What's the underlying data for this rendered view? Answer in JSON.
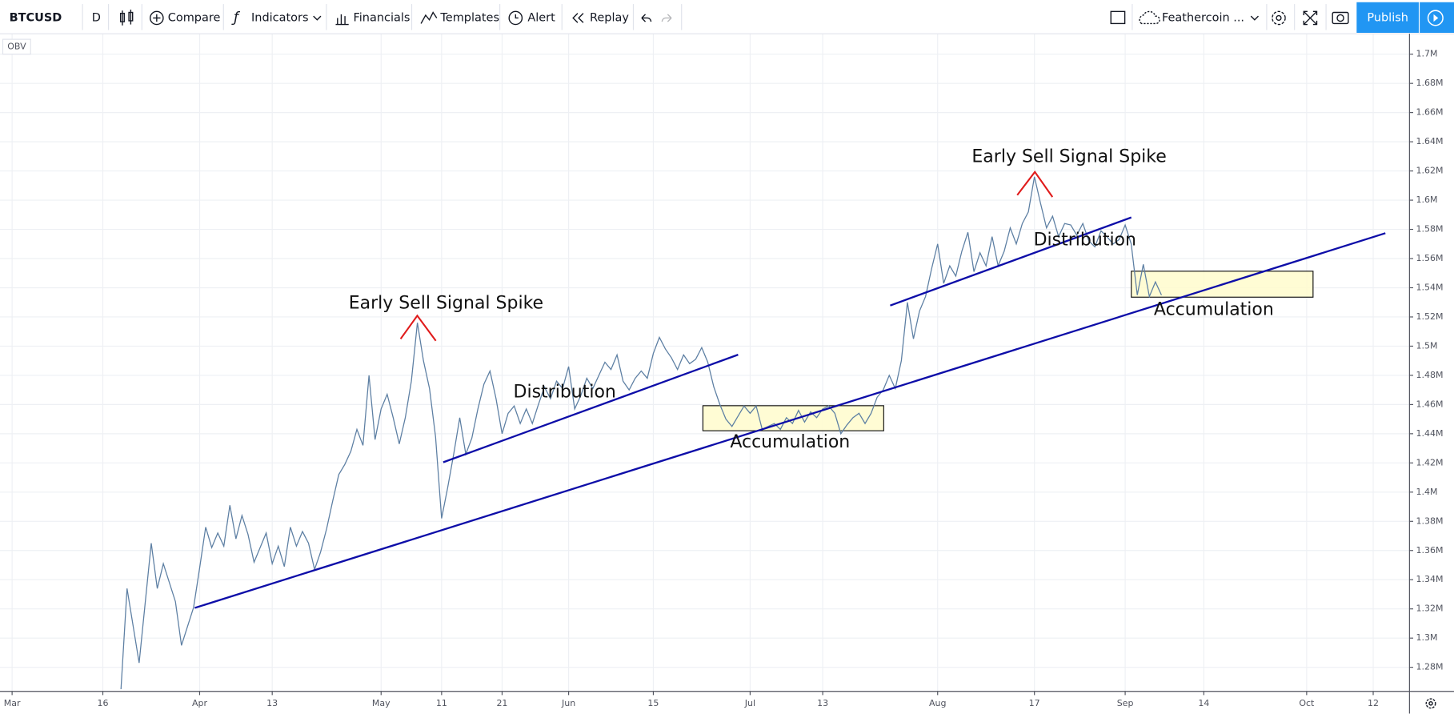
{
  "toolbar": {
    "symbol": "BTCUSD",
    "interval": "D",
    "buttons": [
      "Compare",
      "Indicators",
      "Financials",
      "Templates",
      "Alert",
      "Replay"
    ],
    "layout": "Feathercoin ...",
    "publish": "Publish"
  },
  "chart_data": {
    "type": "line",
    "title": "OBV",
    "color": "#5d7fa3",
    "annotations": [
      "Early Sell Signal Spike",
      "Distribution",
      "Accumulation",
      "Early Sell Signal Spike",
      "Distribution",
      "Accumulation"
    ],
    "x": [
      18,
      19,
      21,
      23,
      24,
      25,
      27,
      28,
      30,
      31,
      32,
      33,
      34,
      35,
      36,
      37,
      38,
      39,
      40,
      41,
      42,
      43,
      44,
      45,
      46,
      47,
      48,
      49,
      50,
      51,
      52,
      53,
      54,
      55,
      56,
      57,
      58,
      59,
      60,
      61,
      62,
      63,
      64,
      65,
      66,
      67,
      68,
      69,
      70,
      71,
      72,
      73,
      74,
      75,
      76,
      77,
      78,
      79,
      80,
      81,
      82,
      83,
      84,
      85,
      86,
      87,
      88,
      89,
      90,
      91,
      92,
      93,
      94,
      95,
      96,
      97,
      98,
      99,
      100,
      101,
      102,
      103,
      104,
      105,
      106,
      107,
      108,
      109,
      110,
      111,
      112,
      113,
      114,
      115,
      116,
      117,
      118,
      119,
      120,
      121,
      122,
      123,
      124,
      125,
      126,
      127,
      128,
      129,
      130,
      131,
      132,
      133,
      134,
      135,
      136,
      137,
      138,
      139,
      140,
      141,
      142,
      143,
      144,
      145,
      146,
      147,
      148,
      149,
      150,
      151,
      152,
      153,
      154,
      155,
      156,
      157,
      158,
      159,
      160,
      161,
      162,
      163,
      164,
      165,
      166,
      167,
      168,
      169,
      170,
      171,
      172,
      173,
      174,
      175,
      176,
      177,
      178,
      179,
      180,
      181,
      182,
      183,
      184,
      185,
      186,
      187,
      188,
      189,
      190
    ],
    "values": [
      1265000,
      1334000,
      1283000,
      1365000,
      1334000,
      1351000,
      1325000,
      1295000,
      1321000,
      1348000,
      1376000,
      1362000,
      1372000,
      1363000,
      1391000,
      1368000,
      1384000,
      1371000,
      1352000,
      1362000,
      1372000,
      1351000,
      1363000,
      1349000,
      1376000,
      1363000,
      1373000,
      1365000,
      1347000,
      1359000,
      1375000,
      1394000,
      1412000,
      1419000,
      1428000,
      1443000,
      1432000,
      1480000,
      1436000,
      1457000,
      1467000,
      1451000,
      1433000,
      1451000,
      1476000,
      1516000,
      1490000,
      1471000,
      1438000,
      1382000,
      1403000,
      1426000,
      1451000,
      1426000,
      1437000,
      1457000,
      1474000,
      1483000,
      1464000,
      1440000,
      1454000,
      1459000,
      1447000,
      1457000,
      1447000,
      1460000,
      1472000,
      1464000,
      1476000,
      1471000,
      1486000,
      1457000,
      1466000,
      1478000,
      1471000,
      1480000,
      1489000,
      1484000,
      1494000,
      1476000,
      1470000,
      1478000,
      1483000,
      1478000,
      1495000,
      1506000,
      1498000,
      1492000,
      1484000,
      1494000,
      1488000,
      1491000,
      1499000,
      1489000,
      1472000,
      1460000,
      1450000,
      1445000,
      1452000,
      1459000,
      1454000,
      1459000,
      1443000,
      1445000,
      1447000,
      1443000,
      1451000,
      1447000,
      1456000,
      1448000,
      1455000,
      1451000,
      1457000,
      1459000,
      1454000,
      1440000,
      1446000,
      1451000,
      1454000,
      1447000,
      1454000,
      1465000,
      1470000,
      1480000,
      1471000,
      1490000,
      1530000,
      1505000,
      1524000,
      1534000,
      1553000,
      1570000,
      1543000,
      1555000,
      1548000,
      1565000,
      1578000,
      1551000,
      1564000,
      1555000,
      1575000,
      1555000,
      1565000,
      1581000,
      1570000,
      1584000,
      1592000,
      1616000,
      1598000,
      1581000,
      1589000,
      1575000,
      1584000,
      1583000,
      1576000,
      1584000,
      1572000,
      1568000,
      1579000,
      1575000,
      1570000,
      1573000,
      1583000,
      1570000,
      1535000,
      1556000,
      1534000,
      1544000,
      1535000
    ],
    "xlim": [
      -2,
      231
    ],
    "xticks": [
      {
        "value": 0,
        "label": "Mar"
      },
      {
        "value": 15,
        "label": "16"
      },
      {
        "value": 31,
        "label": "Apr"
      },
      {
        "value": 43,
        "label": "13"
      },
      {
        "value": 61,
        "label": "May"
      },
      {
        "value": 71,
        "label": "11"
      },
      {
        "value": 81,
        "label": "21"
      },
      {
        "value": 92,
        "label": "Jun"
      },
      {
        "value": 106,
        "label": "15"
      },
      {
        "value": 122,
        "label": "Jul"
      },
      {
        "value": 134,
        "label": "13"
      },
      {
        "value": 153,
        "label": "Aug"
      },
      {
        "value": 169,
        "label": "17"
      },
      {
        "value": 184,
        "label": "Sep"
      },
      {
        "value": 197,
        "label": "14"
      },
      {
        "value": 214,
        "label": "Oct"
      },
      {
        "value": 225,
        "label": "12"
      }
    ],
    "ylim": [
      1263500,
      1714000
    ],
    "yticks": [
      {
        "value": 1280000,
        "label": "1.28M"
      },
      {
        "value": 1300000,
        "label": "1.3M"
      },
      {
        "value": 1320000,
        "label": "1.32M"
      },
      {
        "value": 1340000,
        "label": "1.34M"
      },
      {
        "value": 1360000,
        "label": "1.36M"
      },
      {
        "value": 1380000,
        "label": "1.38M"
      },
      {
        "value": 1400000,
        "label": "1.4M"
      },
      {
        "value": 1420000,
        "label": "1.42M"
      },
      {
        "value": 1440000,
        "label": "1.44M"
      },
      {
        "value": 1460000,
        "label": "1.46M"
      },
      {
        "value": 1480000,
        "label": "1.48M"
      },
      {
        "value": 1500000,
        "label": "1.5M"
      },
      {
        "value": 1520000,
        "label": "1.52M"
      },
      {
        "value": 1540000,
        "label": "1.54M"
      },
      {
        "value": 1560000,
        "label": "1.56M"
      },
      {
        "value": 1580000,
        "label": "1.58M"
      },
      {
        "value": 1600000,
        "label": "1.6M"
      },
      {
        "value": 1620000,
        "label": "1.62M"
      },
      {
        "value": 1640000,
        "label": "1.64M"
      },
      {
        "value": 1660000,
        "label": "1.66M"
      },
      {
        "value": 1680000,
        "label": "1.68M"
      },
      {
        "value": 1700000,
        "label": "1.7M"
      }
    ],
    "grid": true
  }
}
